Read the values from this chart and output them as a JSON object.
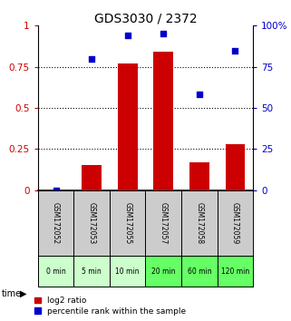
{
  "title": "GDS3030 / 2372",
  "samples": [
    "GSM172052",
    "GSM172053",
    "GSM172055",
    "GSM172057",
    "GSM172058",
    "GSM172059"
  ],
  "time_labels": [
    "0 min",
    "5 min",
    "10 min",
    "20 min",
    "60 min",
    "120 min"
  ],
  "log2_ratio": [
    0.0,
    0.15,
    0.77,
    0.84,
    0.17,
    0.28
  ],
  "percentile_rank": [
    0.0,
    0.8,
    0.94,
    0.95,
    0.58,
    0.85
  ],
  "bar_color": "#cc0000",
  "dot_color": "#0000cc",
  "ylim_left": [
    0,
    1.0
  ],
  "ylim_right": [
    0,
    100
  ],
  "yticks_left": [
    0,
    0.25,
    0.5,
    0.75,
    1.0
  ],
  "yticks_right": [
    0,
    25,
    50,
    75,
    100
  ],
  "title_fontsize": 10,
  "axis_label_color_left": "#cc0000",
  "axis_label_color_right": "#0000cc",
  "time_row_colors": [
    "#ccffcc",
    "#ccffcc",
    "#ccffcc",
    "#66ff66",
    "#66ff66",
    "#66ff66"
  ],
  "sample_row_color": "#cccccc",
  "legend_red_label": "log2 ratio",
  "legend_blue_label": "percentile rank within the sample"
}
